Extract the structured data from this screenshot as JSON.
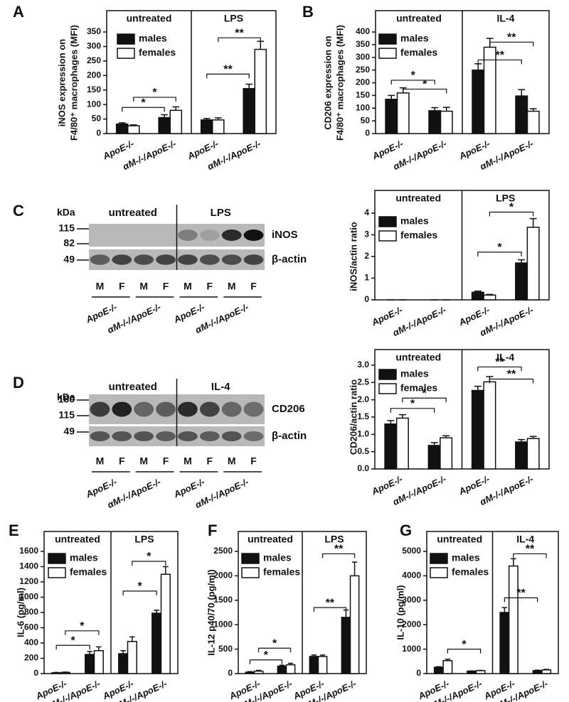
{
  "chart_data": [
    {
      "type": "bar",
      "label": "A",
      "ylabel": [
        "iNOS expression on",
        "F4/80⁺ macrophages (MFI)"
      ],
      "groups": [
        "untreated",
        "LPS"
      ],
      "categories": [
        "ApoE-/-",
        "αM-/-/ApoE-/-",
        "ApoE-/-",
        "αM-/-/ApoE-/-"
      ],
      "series": [
        {
          "name": "males",
          "color": "#111111",
          "values": [
            33,
            55,
            47,
            155
          ],
          "errors": [
            4,
            10,
            5,
            15
          ]
        },
        {
          "name": "females",
          "color": "#ffffff",
          "values": [
            27,
            80,
            47,
            290
          ],
          "errors": [
            3,
            12,
            7,
            28
          ]
        }
      ],
      "ylim": [
        0,
        350
      ],
      "yticks": [
        0,
        50,
        100,
        150,
        200,
        250,
        300,
        350
      ],
      "annotations": [
        "*",
        "*",
        "**",
        "**"
      ]
    },
    {
      "type": "bar",
      "label": "B",
      "ylabel": [
        "CD206 expression on",
        "F4/80⁺ macrophages (MFI)"
      ],
      "groups": [
        "untreated",
        "IL-4"
      ],
      "categories": [
        "ApoE-/-",
        "αM-/-/ApoE-/-",
        "ApoE-/-",
        "αM-/-/ApoE-/-"
      ],
      "series": [
        {
          "name": "males",
          "color": "#111111",
          "values": [
            135,
            90,
            250,
            148
          ],
          "errors": [
            15,
            12,
            25,
            25
          ]
        },
        {
          "name": "females",
          "color": "#ffffff",
          "values": [
            160,
            88,
            340,
            88
          ],
          "errors": [
            20,
            15,
            35,
            10
          ]
        }
      ],
      "ylim": [
        0,
        400
      ],
      "yticks": [
        0,
        50,
        100,
        150,
        200,
        250,
        300,
        350,
        400
      ],
      "annotations": [
        "*",
        "*",
        "**",
        "**"
      ]
    },
    {
      "type": "bar",
      "ylabel": [
        "iNOS/actin ratio"
      ],
      "groups": [
        "untreated",
        "LPS"
      ],
      "categories": [
        "ApoE-/-",
        "αM-/-/ApoE-/-",
        "ApoE-/-",
        "αM-/-/ApoE-/-"
      ],
      "series": [
        {
          "name": "males",
          "color": "#111111",
          "values": [
            0,
            0,
            0.35,
            1.7
          ],
          "errors": [
            0,
            0,
            0.05,
            0.15
          ]
        },
        {
          "name": "females",
          "color": "#ffffff",
          "values": [
            0,
            0,
            0.22,
            3.35
          ],
          "errors": [
            0,
            0,
            0.03,
            0.4
          ]
        }
      ],
      "ylim": [
        0,
        4
      ],
      "yticks": [
        0,
        1,
        2,
        3,
        4
      ],
      "annotations": [
        "*",
        "*"
      ]
    },
    {
      "type": "bar",
      "ylabel": [
        "CD206/actin ratio"
      ],
      "groups": [
        "untreated",
        "IL-4"
      ],
      "categories": [
        "ApoE-/-",
        "αM-/-/ApoE-/-",
        "ApoE-/-",
        "αM-/-/ApoE-/-"
      ],
      "series": [
        {
          "name": "males",
          "color": "#111111",
          "values": [
            1.3,
            0.68,
            2.27,
            0.78
          ],
          "errors": [
            0.1,
            0.08,
            0.12,
            0.07
          ]
        },
        {
          "name": "females",
          "color": "#ffffff",
          "values": [
            1.47,
            0.9,
            2.52,
            0.88
          ],
          "errors": [
            0.1,
            0.06,
            0.15,
            0.06
          ]
        }
      ],
      "ylim": [
        0,
        3
      ],
      "yticks": [
        {
          "value": 0,
          "label": "0.0"
        },
        0.5,
        {
          "value": 1,
          "label": "1.0"
        },
        1.5,
        {
          "value": 2,
          "label": "2.0"
        },
        2.5,
        {
          "value": 3,
          "label": "3.0"
        }
      ],
      "annotations": [
        "*",
        "*",
        "**",
        "**"
      ]
    },
    {
      "type": "bar",
      "label": "E",
      "ylabel": [
        "IL-6 (pg/ml)"
      ],
      "groups": [
        "untreated",
        "LPS"
      ],
      "categories": [
        "ApoE-/-",
        "αM-/-/ApoE-/-",
        "ApoE-/-",
        "αM-/-/ApoE-/-"
      ],
      "series": [
        {
          "name": "males",
          "color": "#111111",
          "values": [
            10,
            250,
            260,
            790
          ],
          "errors": [
            5,
            40,
            40,
            40
          ]
        },
        {
          "name": "females",
          "color": "#ffffff",
          "values": [
            15,
            300,
            420,
            1300
          ],
          "errors": [
            5,
            50,
            60,
            100
          ]
        }
      ],
      "ylim": [
        0,
        1600
      ],
      "yticks": [
        0,
        200,
        400,
        600,
        800,
        1000,
        1200,
        1400,
        1600
      ],
      "annotations": [
        "*",
        "*",
        "*",
        "*"
      ]
    },
    {
      "type": "bar",
      "label": "F",
      "ylabel": [
        "IL-12 p40/70 (pg/ml)"
      ],
      "groups": [
        "untreated",
        "LPS"
      ],
      "categories": [
        "ApoE-/-",
        "αM-/-/ApoE-/-",
        "ApoE-/-",
        "αM-/-/ApoE-/-"
      ],
      "series": [
        {
          "name": "males",
          "color": "#111111",
          "values": [
            30,
            150,
            350,
            1150
          ],
          "errors": [
            10,
            20,
            30,
            150
          ]
        },
        {
          "name": "females",
          "color": "#ffffff",
          "values": [
            50,
            180,
            350,
            2000
          ],
          "errors": [
            15,
            30,
            30,
            280
          ]
        }
      ],
      "ylim": [
        0,
        2500
      ],
      "yticks": [
        0,
        500,
        1000,
        1500,
        2000,
        2500
      ],
      "annotations": [
        "*",
        "*",
        "**",
        "**"
      ]
    },
    {
      "type": "bar",
      "label": "G",
      "ylabel": [
        "IL-10 (pg/ml)"
      ],
      "groups": [
        "untreated",
        "IL-4"
      ],
      "categories": [
        "ApoE-/-",
        "αM-/-/ApoE-/-",
        "ApoE-/-",
        "αM-/-/ApoE-/-"
      ],
      "series": [
        {
          "name": "males",
          "color": "#111111",
          "values": [
            260,
            100,
            2500,
            120
          ],
          "errors": [
            20,
            10,
            200,
            20
          ]
        },
        {
          "name": "females",
          "color": "#ffffff",
          "values": [
            530,
            120,
            4400,
            150
          ],
          "errors": [
            60,
            10,
            300,
            20
          ]
        }
      ],
      "ylim": [
        0,
        5000
      ],
      "yticks": [
        0,
        1000,
        2000,
        3000,
        4000,
        5000
      ],
      "annotations": [
        "*",
        "**",
        "**"
      ]
    }
  ],
  "blots": [
    {
      "label": "C",
      "unit": "kDa",
      "markers": [
        115,
        82,
        49
      ],
      "groups": [
        "untreated",
        "LPS"
      ],
      "bands": [
        "iNOS",
        "β-actin"
      ],
      "lanes": [
        "M",
        "F",
        "M",
        "F",
        "M",
        "F",
        "M",
        "F"
      ],
      "lane_groups": [
        "ApoE-/-",
        "αM-/-/ApoE-/-",
        "ApoE-/-",
        "αM-/-/ApoE-/-"
      ]
    },
    {
      "label": "D",
      "unit": "kDa",
      "markers": [
        180,
        115,
        49
      ],
      "groups": [
        "untreated",
        "IL-4"
      ],
      "bands": [
        "CD206",
        "β-actin"
      ],
      "lanes": [
        "M",
        "F",
        "M",
        "F",
        "M",
        "F",
        "M",
        "F"
      ],
      "lane_groups": [
        "ApoE-/-",
        "αM-/-/ApoE-/-",
        "ApoE-/-",
        "αM-/-/ApoE-/-"
      ]
    }
  ]
}
